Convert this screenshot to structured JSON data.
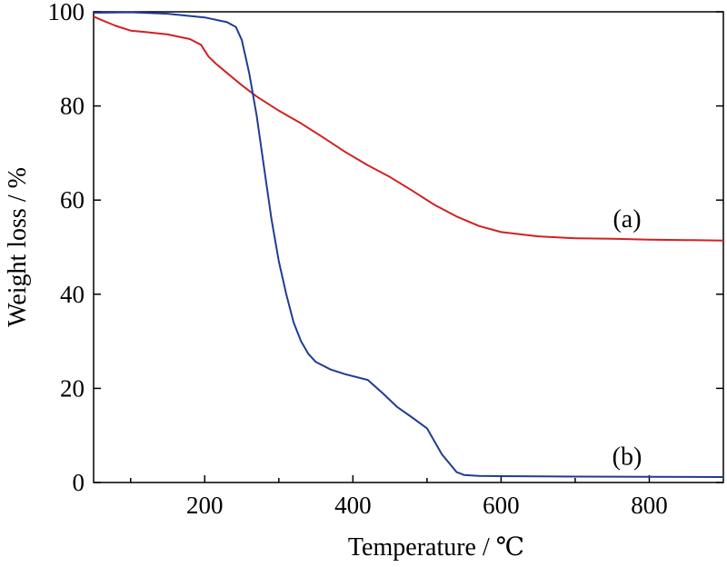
{
  "chart_data": {
    "type": "line",
    "xlabel": "Temperature / ℃",
    "ylabel": "Weight loss / %",
    "xlim": [
      50,
      900
    ],
    "ylim": [
      0,
      100
    ],
    "x_ticks": [
      200,
      400,
      600,
      800
    ],
    "x_ticks_minor": [
      100,
      300,
      500,
      700
    ],
    "y_ticks": [
      0,
      20,
      40,
      60,
      80,
      100
    ],
    "grid": false,
    "legend": "none",
    "series": [
      {
        "name": "(a)",
        "color": "#d42020",
        "label_at": [
          770,
          56
        ],
        "x": [
          50,
          60,
          80,
          100,
          120,
          150,
          180,
          195,
          205,
          215,
          230,
          250,
          270,
          300,
          330,
          360,
          390,
          420,
          450,
          480,
          510,
          540,
          570,
          600,
          650,
          700,
          750,
          800,
          850,
          900
        ],
        "y": [
          99,
          98.3,
          97,
          96,
          95.7,
          95.2,
          94.2,
          93,
          90.5,
          89,
          87,
          84.4,
          82,
          79,
          76.3,
          73.3,
          70.2,
          67.4,
          64.9,
          62,
          59,
          56.5,
          54.5,
          53.2,
          52.3,
          51.9,
          51.8,
          51.6,
          51.5,
          51.4
        ]
      },
      {
        "name": "(b)",
        "color": "#1f3c96",
        "label_at": [
          770,
          5.5
        ],
        "x": [
          50,
          100,
          150,
          200,
          230,
          242,
          250,
          260,
          270,
          280,
          290,
          300,
          310,
          320,
          330,
          340,
          350,
          370,
          390,
          420,
          440,
          460,
          480,
          500,
          520,
          540,
          550,
          570,
          600,
          700,
          800,
          900
        ],
        "y": [
          99.8,
          99.9,
          99.6,
          98.8,
          97.8,
          96.8,
          94,
          87,
          78,
          67,
          56,
          47,
          40,
          34,
          30,
          27.3,
          25.6,
          24,
          23,
          21.8,
          19,
          16,
          13.8,
          11.5,
          6,
          2.2,
          1.6,
          1.4,
          1.35,
          1.25,
          1.2,
          1.15
        ]
      }
    ]
  }
}
